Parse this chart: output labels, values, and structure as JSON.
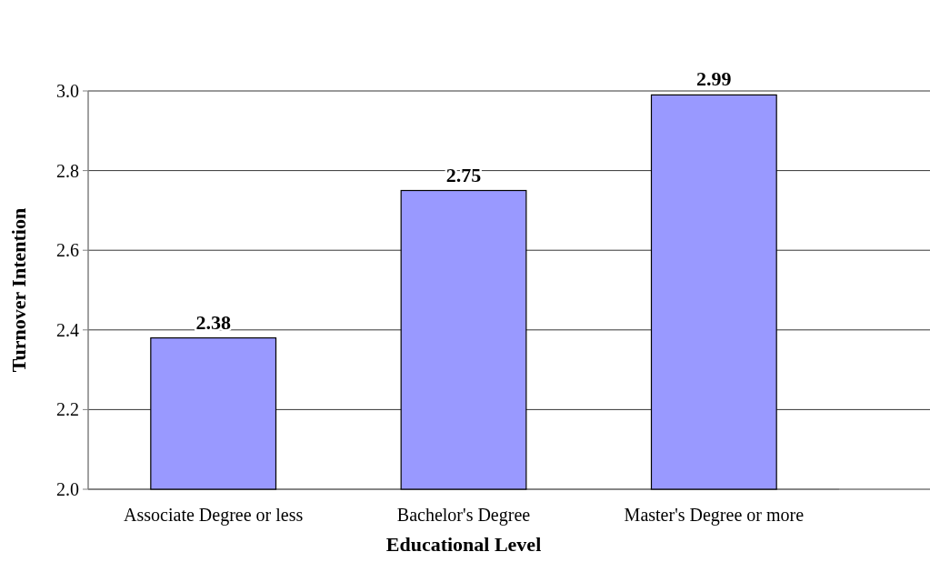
{
  "chart_data": {
    "type": "bar",
    "xlabel": "Educational Level",
    "ylabel": "Turnover Intention",
    "categories": [
      "Associate Degree or less",
      "Bachelor's Degree",
      "Master's Degree or more"
    ],
    "values": [
      2.38,
      2.75,
      2.99
    ],
    "color": "#9999ff",
    "ylim": [
      2.0,
      3.0
    ],
    "yticks": [
      {
        "value": 2.0,
        "label": "2.0"
      },
      {
        "value": 2.2,
        "label": "2.2"
      },
      {
        "value": 2.4,
        "label": "2.4"
      },
      {
        "value": 2.6,
        "label": "2.6"
      },
      {
        "value": 2.8,
        "label": "2.8"
      },
      {
        "value": 3.0,
        "label": "3.0"
      }
    ],
    "grid": "y",
    "data_labels": true
  }
}
